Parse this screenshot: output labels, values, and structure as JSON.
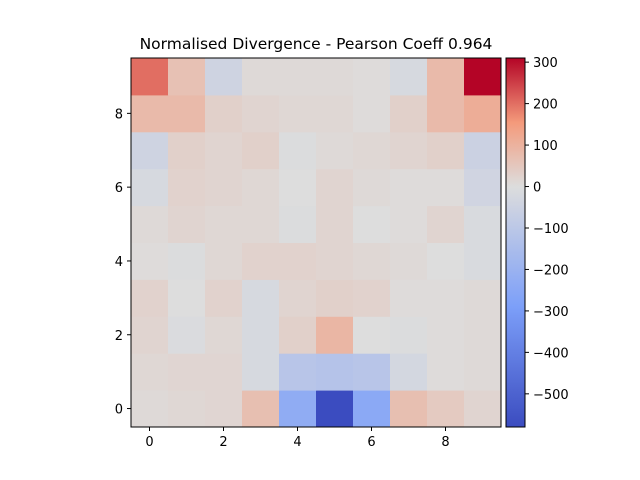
{
  "chart_data": {
    "type": "heatmap",
    "title": "Normalised Divergence - Pearson Coeff 0.964",
    "xlabel": "",
    "ylabel": "",
    "origin": "lower",
    "x_ticks": [
      0,
      2,
      4,
      6,
      8
    ],
    "x_tick_labels": [
      "0",
      "2",
      "4",
      "6",
      "8"
    ],
    "y_ticks": [
      0,
      2,
      4,
      6,
      8
    ],
    "y_tick_labels": [
      "0",
      "2",
      "4",
      "6",
      "8"
    ],
    "xlim": [
      -0.5,
      9.5
    ],
    "ylim": [
      -0.5,
      9.5
    ],
    "colormap": "coolwarm",
    "vmin": -580,
    "vmax": 310,
    "colorbar_ticks": [
      300,
      200,
      100,
      0,
      -100,
      -200,
      -300,
      -400,
      -500
    ],
    "colorbar_tick_labels": [
      "300",
      "200",
      "100",
      "0",
      "−100",
      "−200",
      "−300",
      "−400",
      "−500"
    ],
    "grid": false,
    "values": [
      [
        10,
        15,
        18,
        70,
        -230,
        -580,
        -245,
        70,
        45,
        20
      ],
      [
        15,
        18,
        18,
        -20,
        -110,
        -120,
        -110,
        -30,
        5,
        10
      ],
      [
        20,
        -10,
        15,
        -20,
        30,
        90,
        0,
        -5,
        5,
        10
      ],
      [
        25,
        0,
        25,
        -20,
        20,
        30,
        25,
        5,
        5,
        10
      ],
      [
        5,
        -5,
        15,
        25,
        25,
        20,
        15,
        10,
        0,
        -15
      ],
      [
        10,
        20,
        15,
        15,
        -5,
        20,
        0,
        5,
        20,
        -15
      ],
      [
        -20,
        25,
        20,
        15,
        0,
        20,
        10,
        5,
        5,
        -40
      ],
      [
        -45,
        30,
        20,
        30,
        -5,
        10,
        15,
        20,
        30,
        -55
      ],
      [
        80,
        80,
        30,
        20,
        15,
        15,
        5,
        30,
        80,
        110
      ],
      [
        200,
        65,
        -45,
        10,
        10,
        10,
        5,
        -20,
        80,
        310
      ]
    ]
  }
}
